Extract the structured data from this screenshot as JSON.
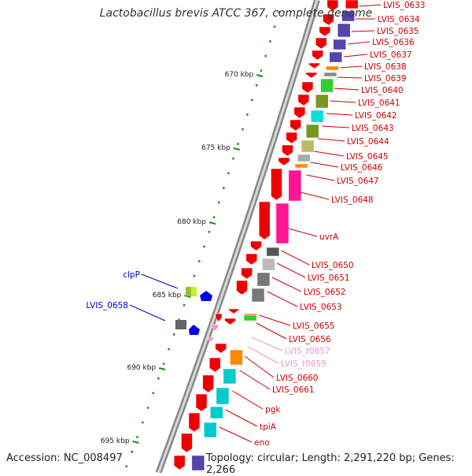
{
  "title": "Lactobacillus brevis ATCC 367, complete genome",
  "accession": "Accession: NC_008497",
  "topology": "Topology: circular; Length: 2,291,220 bp; Genes: 2,266",
  "kbp_ticks": [
    "670 kbp",
    "675 kbp",
    "680 kbp",
    "685 kbp",
    "690 kbp",
    "695 kbp"
  ],
  "genes_right": [
    {
      "label": "LVIS_0633",
      "color": "#cc0000"
    },
    {
      "label": "LVIS_0634",
      "color": "#cc0000"
    },
    {
      "label": "LVIS_0635",
      "color": "#cc0000"
    },
    {
      "label": "LVIS_0636",
      "color": "#cc0000"
    },
    {
      "label": "LVIS_0637",
      "color": "#cc0000"
    },
    {
      "label": "LVIS_0638",
      "color": "#cc0000"
    },
    {
      "label": "LVIS_0639",
      "color": "#cc0000"
    },
    {
      "label": "LVIS_0640",
      "color": "#cc0000"
    },
    {
      "label": "LVIS_0641",
      "color": "#cc0000"
    },
    {
      "label": "LVIS_0642",
      "color": "#cc0000"
    },
    {
      "label": "LVIS_0643",
      "color": "#cc0000"
    },
    {
      "label": "LVIS_0644",
      "color": "#cc0000"
    },
    {
      "label": "LVIS_0645",
      "color": "#cc0000"
    },
    {
      "label": "LVIS_0646",
      "color": "#cc0000"
    },
    {
      "label": "LVIS_0647",
      "color": "#cc0000"
    },
    {
      "label": "LVIS_0648",
      "color": "#cc0000"
    },
    {
      "label": "uvrA",
      "color": "#cc0000"
    },
    {
      "label": "LVIS_0650",
      "color": "#cc0000"
    },
    {
      "label": "LVIS_0651",
      "color": "#cc0000"
    },
    {
      "label": "LVIS_0652",
      "color": "#cc0000"
    },
    {
      "label": "LVIS_0653",
      "color": "#cc0000"
    },
    {
      "label": "LVIS_0655",
      "color": "#cc0000"
    },
    {
      "label": "LVIS_0656",
      "color": "#cc0000"
    },
    {
      "label": "LVIS_t0657",
      "color": "#ee99cc"
    },
    {
      "label": "LVIS_t0659",
      "color": "#ee99cc"
    },
    {
      "label": "LVIS_0660",
      "color": "#cc0000"
    },
    {
      "label": "LVIS_0661",
      "color": "#cc0000"
    },
    {
      "label": "pgk",
      "color": "#cc0000"
    },
    {
      "label": "tpiA",
      "color": "#cc0000"
    },
    {
      "label": "eno",
      "color": "#cc0000"
    }
  ],
  "genes_left": [
    {
      "label": "clpP",
      "color": "#0000cc"
    },
    {
      "label": "LVIS_0658",
      "color": "#0000cc"
    }
  ]
}
